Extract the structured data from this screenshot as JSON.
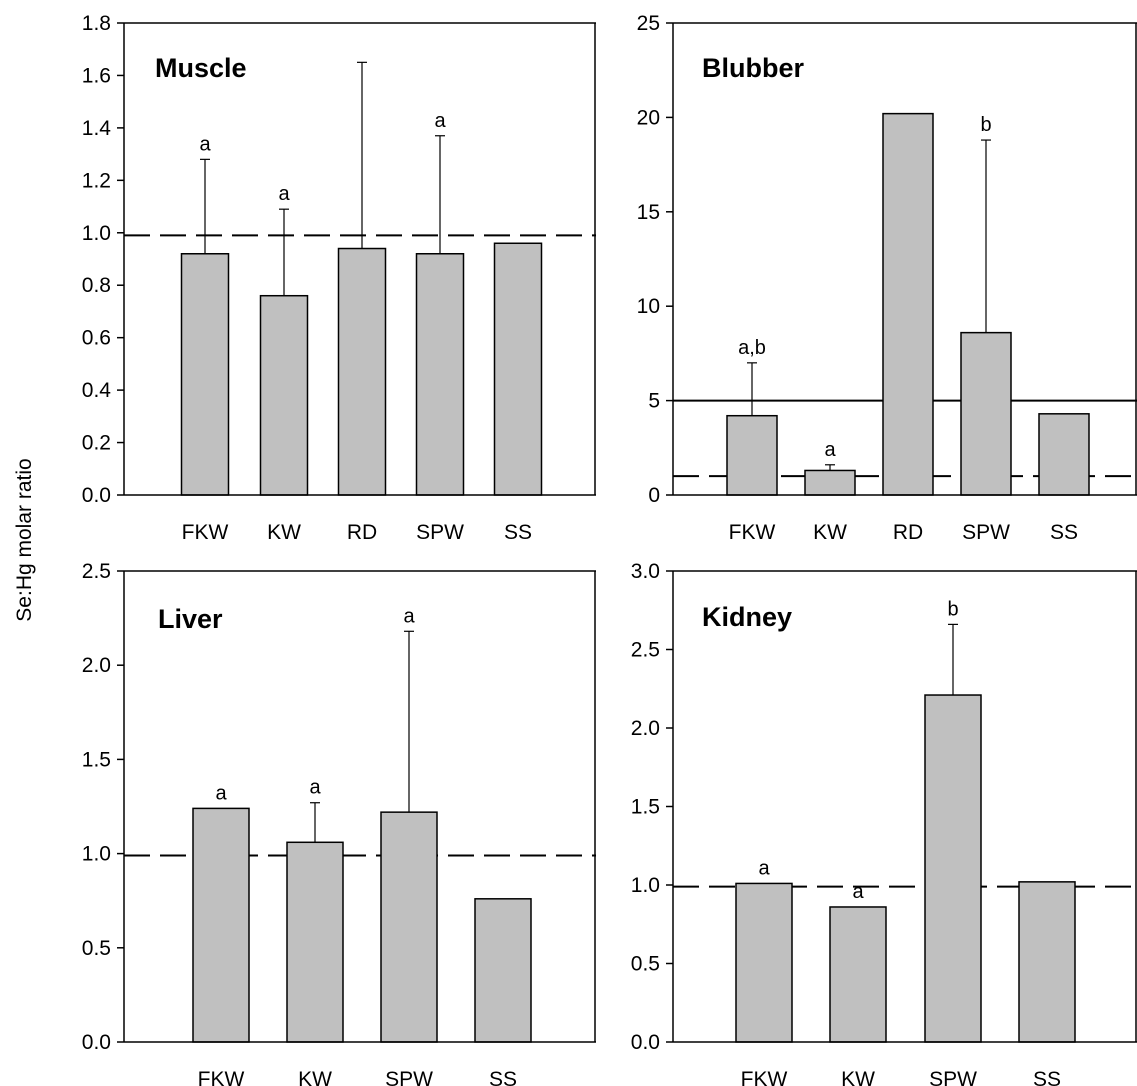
{
  "figure": {
    "ylabel": "Se:Hg molar ratio"
  },
  "chart_data": [
    {
      "type": "bar",
      "title": "Muscle",
      "categories": [
        "FKW",
        "KW",
        "RD",
        "SPW",
        "SS"
      ],
      "values": [
        0.92,
        0.76,
        0.94,
        0.92,
        0.96
      ],
      "error_upper": [
        1.28,
        1.09,
        1.65,
        1.37,
        null
      ],
      "sig_labels": [
        "a",
        "a",
        "",
        "a",
        ""
      ],
      "ylim": [
        0,
        1.8
      ],
      "yticks": [
        "0.0",
        "0.2",
        "0.4",
        "0.6",
        "0.8",
        "1.0",
        "1.2",
        "1.4",
        "1.6",
        "1.8"
      ],
      "reference_lines": [
        {
          "y": 0.99,
          "style": "dashed"
        }
      ],
      "bar_color": "#c0c0c0"
    },
    {
      "type": "bar",
      "title": "Blubber",
      "categories": [
        "FKW",
        "KW",
        "RD",
        "SPW",
        "SS"
      ],
      "values": [
        4.2,
        1.3,
        20.2,
        8.6,
        4.3
      ],
      "error_upper": [
        7.0,
        1.6,
        null,
        18.8,
        null
      ],
      "sig_labels": [
        "a,b",
        "a",
        "",
        "b",
        ""
      ],
      "ylim": [
        0,
        25
      ],
      "yticks": [
        "0",
        "5",
        "10",
        "15",
        "20",
        "25"
      ],
      "reference_lines": [
        {
          "y": 5,
          "style": "solid"
        },
        {
          "y": 1,
          "style": "dashed"
        }
      ],
      "bar_color": "#c0c0c0"
    },
    {
      "type": "bar",
      "title": "Liver",
      "categories": [
        "FKW",
        "KW",
        "SPW",
        "SS"
      ],
      "values": [
        1.24,
        1.06,
        1.22,
        0.76
      ],
      "error_upper": [
        null,
        1.27,
        2.18,
        null
      ],
      "sig_labels": [
        "a",
        "a",
        "a",
        ""
      ],
      "ylim": [
        0,
        2.5
      ],
      "yticks": [
        "0.0",
        "0.5",
        "1.0",
        "1.5",
        "2.0",
        "2.5"
      ],
      "reference_lines": [
        {
          "y": 0.99,
          "style": "dashed"
        }
      ],
      "bar_color": "#c0c0c0"
    },
    {
      "type": "bar",
      "title": "Kidney",
      "categories": [
        "FKW",
        "KW",
        "SPW",
        "SS"
      ],
      "values": [
        1.01,
        0.86,
        2.21,
        1.02
      ],
      "error_upper": [
        null,
        null,
        2.66,
        null
      ],
      "sig_labels": [
        "a",
        "a",
        "b",
        ""
      ],
      "ylim": [
        0,
        3.0
      ],
      "yticks": [
        "0.0",
        "0.5",
        "1.0",
        "1.5",
        "2.0",
        "2.5",
        "3.0"
      ],
      "reference_lines": [
        {
          "y": 0.99,
          "style": "dashed"
        }
      ],
      "bar_color": "#c0c0c0"
    }
  ]
}
